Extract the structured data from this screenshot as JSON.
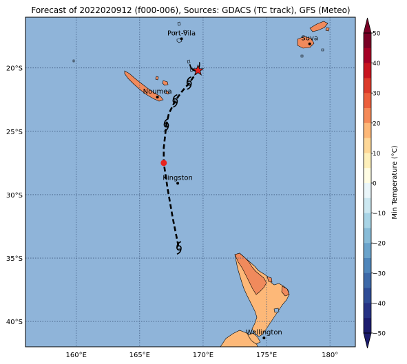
{
  "title": "Forecast of 2022020912 (f000-006), Sources: GDACS (TC track), GFS (Meteo)",
  "colors": {
    "ocean": "#8fb4d9",
    "land_warm": "#f08a5c",
    "land_nz": "#fdb878",
    "grid": "#3f5a80",
    "track": "#000000",
    "marker_red": "#e8231e"
  },
  "map": {
    "lon_range": [
      156.0,
      182.0
    ],
    "lat_range": [
      -42.0,
      -16.0
    ],
    "lon_ticks": [
      {
        "value": 160,
        "label": "160°E"
      },
      {
        "value": 165,
        "label": "165°E"
      },
      {
        "value": 170,
        "label": "170°E"
      },
      {
        "value": 175,
        "label": "175°E"
      },
      {
        "value": 180,
        "label": "180°"
      }
    ],
    "lat_ticks": [
      {
        "value": -20,
        "label": "20°S"
      },
      {
        "value": -25,
        "label": "25°S"
      },
      {
        "value": -30,
        "label": "30°S"
      },
      {
        "value": -35,
        "label": "35°S"
      },
      {
        "value": -40,
        "label": "40°S"
      }
    ],
    "cities": [
      {
        "name": "Port-Vila",
        "lon": 168.3,
        "lat": -17.7
      },
      {
        "name": "Suva",
        "lon": 178.4,
        "lat": -18.1
      },
      {
        "name": "Noumea",
        "lon": 166.4,
        "lat": -22.3
      },
      {
        "name": "Kingston",
        "lon": 168.0,
        "lat": -29.1
      },
      {
        "name": "Wellington",
        "lon": 174.8,
        "lat": -41.3
      }
    ],
    "track": [
      {
        "lon": 169.6,
        "lat": -20.2
      },
      {
        "lon": 168.9,
        "lat": -21.2
      },
      {
        "lon": 168.3,
        "lat": -21.9
      },
      {
        "lon": 167.8,
        "lat": -22.6
      },
      {
        "lon": 167.3,
        "lat": -23.6
      },
      {
        "lon": 167.1,
        "lat": -24.5
      },
      {
        "lon": 166.9,
        "lat": -26.3
      },
      {
        "lon": 166.9,
        "lat": -27.5
      },
      {
        "lon": 167.2,
        "lat": -29.5
      },
      {
        "lon": 167.6,
        "lat": -31.8
      },
      {
        "lon": 168.0,
        "lat": -33.8
      },
      {
        "lon": 168.1,
        "lat": -34.3
      }
    ],
    "current_position": {
      "lon": 169.6,
      "lat": -20.2
    },
    "cyclone_symbols": [
      {
        "lon": 168.9,
        "lat": -21.2
      },
      {
        "lon": 167.8,
        "lat": -22.6
      },
      {
        "lon": 167.1,
        "lat": -24.5
      },
      {
        "lon": 168.1,
        "lat": -34.2
      }
    ],
    "red_point": {
      "lon": 166.9,
      "lat": -27.5
    }
  },
  "colorbar": {
    "label": "Min Temperature (°C)",
    "min": -50,
    "max": 50,
    "ticks": [
      {
        "value": 50,
        "label": "50"
      },
      {
        "value": 40,
        "label": "40"
      },
      {
        "value": 30,
        "label": "30"
      },
      {
        "value": 20,
        "label": "20"
      },
      {
        "value": 10,
        "label": "10"
      },
      {
        "value": 0,
        "label": "0"
      },
      {
        "value": -10,
        "label": "−10"
      },
      {
        "value": -20,
        "label": "−20"
      },
      {
        "value": -30,
        "label": "−30"
      },
      {
        "value": -40,
        "label": "−40"
      },
      {
        "value": -50,
        "label": "−50"
      }
    ],
    "bins": [
      {
        "from": 45,
        "to": 50,
        "color": "#7a0026"
      },
      {
        "from": 40,
        "to": 45,
        "color": "#a50026"
      },
      {
        "from": 35,
        "to": 40,
        "color": "#c8141f"
      },
      {
        "from": 30,
        "to": 35,
        "color": "#dc3a2a"
      },
      {
        "from": 25,
        "to": 30,
        "color": "#ec5f3c"
      },
      {
        "from": 20,
        "to": 25,
        "color": "#f58a58"
      },
      {
        "from": 15,
        "to": 20,
        "color": "#fdb878"
      },
      {
        "from": 10,
        "to": 15,
        "color": "#fed898"
      },
      {
        "from": 5,
        "to": 10,
        "color": "#fef0bb"
      },
      {
        "from": 0,
        "to": 5,
        "color": "#fffde4"
      },
      {
        "from": -5,
        "to": 0,
        "color": "#eaf6fa"
      },
      {
        "from": -10,
        "to": -5,
        "color": "#cce8f1"
      },
      {
        "from": -15,
        "to": -10,
        "color": "#a8d4e6"
      },
      {
        "from": -20,
        "to": -15,
        "color": "#88bcd8"
      },
      {
        "from": -25,
        "to": -20,
        "color": "#6aa3cb"
      },
      {
        "from": -30,
        "to": -25,
        "color": "#4f86bb"
      },
      {
        "from": -35,
        "to": -30,
        "color": "#3d69a8"
      },
      {
        "from": -40,
        "to": -35,
        "color": "#2f4c96"
      },
      {
        "from": -45,
        "to": -40,
        "color": "#263284"
      },
      {
        "from": -50,
        "to": -45,
        "color": "#1c1c6e"
      }
    ]
  }
}
